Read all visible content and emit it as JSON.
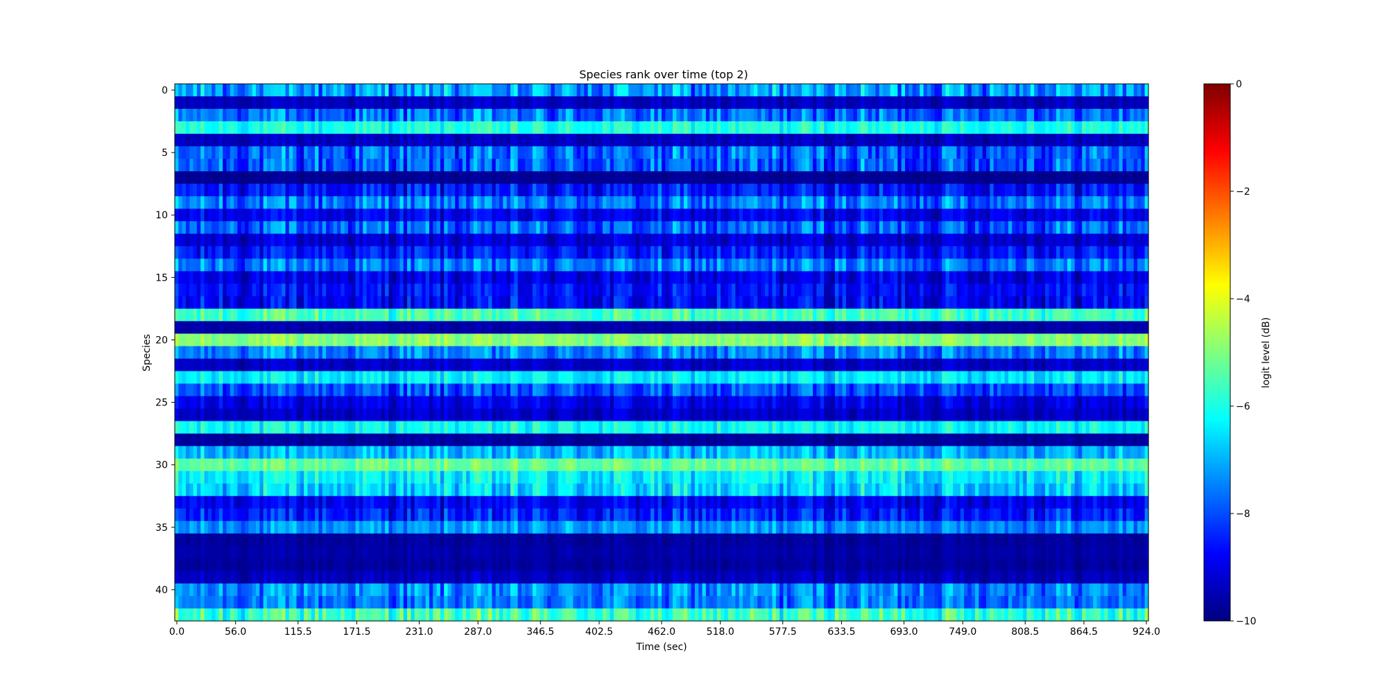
{
  "chart_data": {
    "type": "heatmap",
    "title": "Species rank over time (top 2)",
    "xlabel": "Time (sec)",
    "ylabel": "Species",
    "x_tick_labels": [
      "0.0",
      "56.0",
      "115.5",
      "171.5",
      "231.0",
      "287.0",
      "346.5",
      "402.5",
      "462.0",
      "518.0",
      "577.5",
      "633.5",
      "693.0",
      "749.0",
      "808.5",
      "864.5",
      "924.0"
    ],
    "x_range": [
      0.0,
      924.0
    ],
    "y_tick_labels": [
      "0",
      "5",
      "10",
      "15",
      "20",
      "25",
      "30",
      "35",
      "40"
    ],
    "y_range": [
      0,
      42
    ],
    "n_species": 43,
    "n_time_bins": 264,
    "colormap": "jet",
    "colorbar": {
      "label": "logit level (dB)",
      "tick_labels": [
        "0",
        "−2",
        "−4",
        "−6",
        "−8",
        "−10"
      ],
      "range": [
        -10,
        0
      ]
    },
    "row_mean_level_db": [
      -7.2,
      -9.4,
      -7.7,
      -6.0,
      -9.4,
      -7.8,
      -7.9,
      -9.8,
      -8.6,
      -7.6,
      -8.9,
      -7.8,
      -9.2,
      -8.6,
      -7.6,
      -9.0,
      -8.7,
      -8.8,
      -5.6,
      -9.6,
      -4.9,
      -7.5,
      -9.3,
      -6.4,
      -8.0,
      -9.0,
      -9.3,
      -6.2,
      -9.7,
      -7.0,
      -5.3,
      -6.4,
      -6.7,
      -8.9,
      -8.5,
      -7.3,
      -9.7,
      -9.6,
      -9.7,
      -9.4,
      -7.4,
      -7.6,
      -5.7
    ],
    "row_variation_db": [
      1.6,
      0.5,
      1.4,
      0.8,
      0.5,
      1.5,
      1.5,
      0.2,
      1.2,
      1.4,
      0.9,
      1.4,
      0.7,
      1.2,
      1.3,
      0.9,
      1.0,
      1.1,
      1.0,
      0.3,
      0.7,
      1.2,
      0.6,
      0.9,
      1.2,
      0.8,
      0.6,
      0.9,
      0.3,
      1.1,
      0.8,
      1.1,
      1.3,
      0.9,
      1.2,
      1.0,
      0.3,
      0.3,
      0.3,
      0.5,
      1.3,
      1.2,
      1.4
    ]
  },
  "colors": {
    "jet": [
      "#00007f",
      "#0000ff",
      "#007fff",
      "#00ffff",
      "#7fff7f",
      "#ffff00",
      "#ff7f00",
      "#ff0000",
      "#7f0000"
    ]
  }
}
